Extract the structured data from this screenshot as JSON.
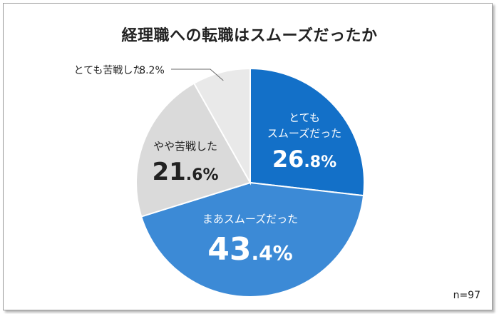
{
  "chart_data": {
    "type": "pie",
    "title": "経理職への転職はスムーズだったか",
    "slices": [
      {
        "label_lines": [
          "とても",
          "スムーズだった"
        ],
        "value": 26.8,
        "int": "26",
        "dec": ".8%",
        "color": "#1370c8",
        "text_color": "#ffffff"
      },
      {
        "label_lines": [
          "まあスムーズだった"
        ],
        "value": 43.4,
        "int": "43",
        "dec": ".4%",
        "color": "#3c8ad6",
        "text_color": "#ffffff"
      },
      {
        "label_lines": [
          "やや苦戦した"
        ],
        "value": 21.6,
        "int": "21",
        "dec": ".6%",
        "color": "#dadada",
        "text_color": "#222222"
      },
      {
        "label_lines": [
          "とても苦戦した"
        ],
        "value": 8.2,
        "int": "8",
        "dec": ".2%",
        "color": "#e9e9e9",
        "text_color": "#222222"
      }
    ],
    "note": "n=97"
  }
}
